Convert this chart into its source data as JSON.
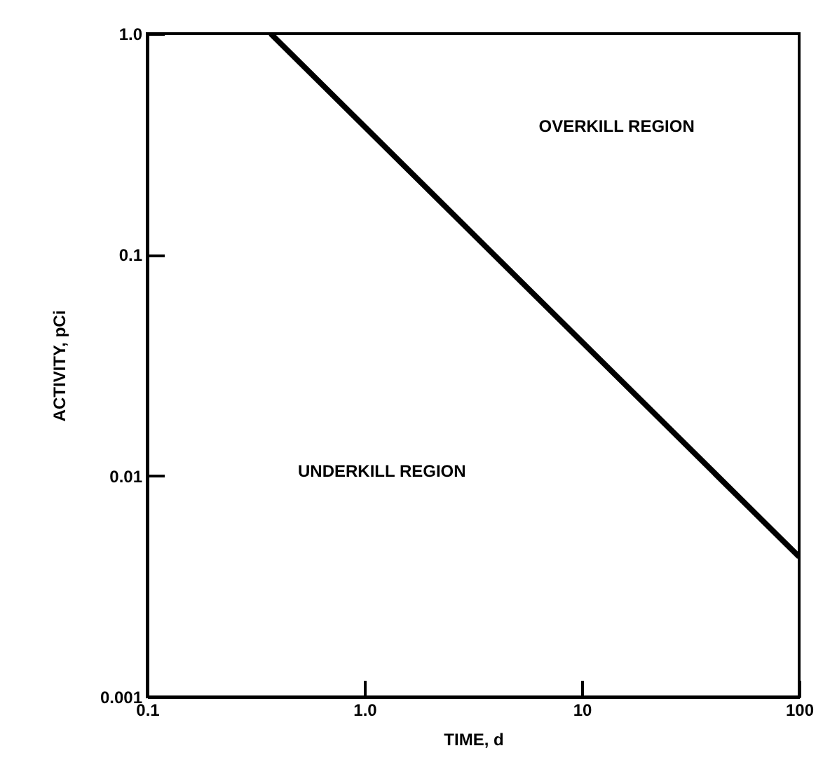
{
  "chart_data": {
    "type": "line",
    "xlabel": "TIME, d",
    "ylabel": "ACTIVITY, pCi",
    "log": "xy",
    "grid": false,
    "marker": "none",
    "line_style": "solid",
    "x": [
      0.37,
      100
    ],
    "series": [
      {
        "color": "#000000",
        "values": [
          1.0,
          0.0043
        ]
      }
    ],
    "xlim": [
      0.1,
      100
    ],
    "xticks": [
      0.1,
      {
        "value": 1,
        "label": "1.0"
      },
      10,
      100
    ],
    "ylim": [
      0.001,
      1
    ],
    "yticks": [
      0.001,
      0.01,
      0.1,
      {
        "value": 1,
        "label": "1.0"
      }
    ],
    "annotations": [
      "OVERKILL REGION",
      "UNDERKILL REGION"
    ]
  }
}
